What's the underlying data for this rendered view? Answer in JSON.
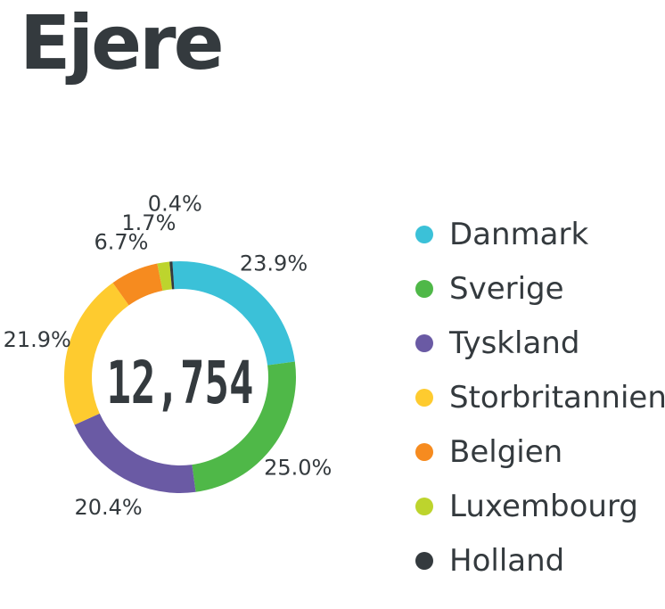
{
  "chart_data": {
    "type": "pie",
    "title": "Ejere",
    "total_label": "12,754",
    "slices": [
      {
        "name": "Danmark",
        "value": 23.9,
        "label": "23.9%",
        "color": "#3bc1d8"
      },
      {
        "name": "Sverige",
        "value": 25.0,
        "label": "25.0%",
        "color": "#4fb848"
      },
      {
        "name": "Tyskland",
        "value": 20.4,
        "label": "20.4%",
        "color": "#6a5aa4"
      },
      {
        "name": "Storbritannien",
        "value": 21.9,
        "label": "21.9%",
        "color": "#fecb2f"
      },
      {
        "name": "Belgien",
        "value": 6.7,
        "label": "6.7%",
        "color": "#f68b1f"
      },
      {
        "name": "Luxembourg",
        "value": 1.7,
        "label": "1.7%",
        "color": "#bdd42d"
      },
      {
        "name": "Holland",
        "value": 0.4,
        "label": "0.4%",
        "color": "#343a3e"
      }
    ],
    "legend_position": "right"
  }
}
